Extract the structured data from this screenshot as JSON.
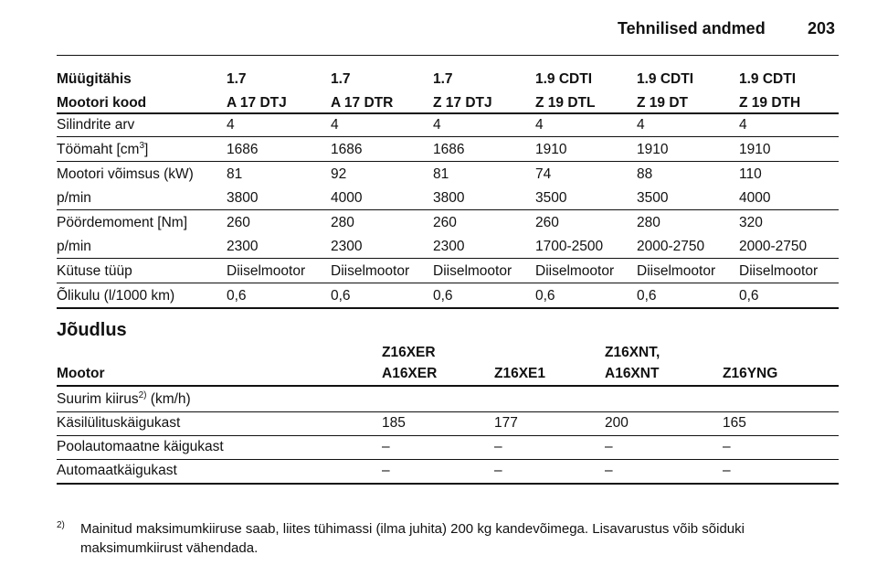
{
  "header": {
    "title": "Tehnilised andmed",
    "page": "203"
  },
  "table1": {
    "header_rows": [
      [
        "Müügitähis",
        "1.7",
        "1.7",
        "1.7",
        "1.9 CDTI",
        "1.9 CDTI",
        "1.9 CDTI"
      ],
      [
        "Mootori kood",
        "A 17 DTJ",
        "A 17 DTR",
        "Z 17 DTJ",
        "Z 19 DTL",
        "Z 19 DT",
        "Z 19 DTH"
      ]
    ],
    "groups": [
      [
        [
          "Silindrite arv",
          "4",
          "4",
          "4",
          "4",
          "4",
          "4"
        ]
      ],
      [
        [
          {
            "text": "Töömaht [cm",
            "sup": "3",
            "after": "]"
          },
          "1686",
          "1686",
          "1686",
          "1910",
          "1910",
          "1910"
        ]
      ],
      [
        [
          "Mootori võimsus (kW)",
          "81",
          "92",
          "81",
          "74",
          "88",
          "110"
        ],
        [
          "p/min",
          "3800",
          "4000",
          "3800",
          "3500",
          "3500",
          "4000"
        ]
      ],
      [
        [
          "Pöördemoment [Nm]",
          "260",
          "280",
          "260",
          "260",
          "280",
          "320"
        ],
        [
          "p/min",
          "2300",
          "2300",
          "2300",
          "1700-2500",
          "2000-2750",
          "2000-2750"
        ]
      ],
      [
        [
          "Kütuse tüüp",
          "Diiselmootor",
          "Diiselmootor",
          "Diiselmootor",
          "Diiselmootor",
          "Diiselmootor",
          "Diiselmootor"
        ]
      ],
      [
        [
          "Õlikulu (l/1000 km)",
          "0,6",
          "0,6",
          "0,6",
          "0,6",
          "0,6",
          "0,6"
        ]
      ]
    ]
  },
  "section_title": "Jõudlus",
  "table2": {
    "header": [
      [
        "Mootor"
      ],
      [
        "Z16XER",
        "A16XER"
      ],
      [
        "Z16XE1"
      ],
      [
        "Z16XNT,",
        "A16XNT"
      ],
      [
        "Z16YNG"
      ]
    ],
    "rows": [
      [
        {
          "text": "Suurim kiirus",
          "sup": "2)",
          "after": " (km/h)"
        },
        "",
        "",
        "",
        ""
      ],
      [
        "Käsilülituskäigukast",
        "185",
        "177",
        "200",
        "165"
      ],
      [
        "Poolautomaatne käigukast",
        "–",
        "–",
        "–",
        "–"
      ],
      [
        "Automaatkäigukast",
        "–",
        "–",
        "–",
        "–"
      ]
    ]
  },
  "footnote": {
    "marker": "2)",
    "lines": [
      "Mainitud maksimumkiiruse saab, liites tühimassi (ilma juhita) 200 kg kandevõimega. Lisavarustus võib sõiduki",
      "maksimumkiirust vähendada."
    ]
  }
}
